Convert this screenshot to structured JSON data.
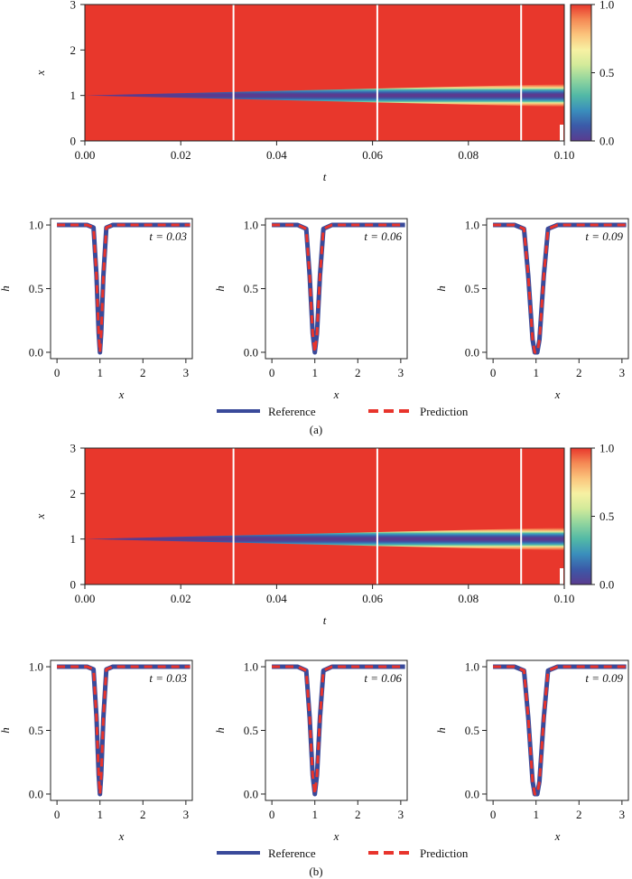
{
  "colors": {
    "reference": "#3a4a9a",
    "prediction": "#e8342c",
    "colormap": [
      "#5a3b8f",
      "#3b5aa8",
      "#3a8ebc",
      "#52b9a6",
      "#8fd49e",
      "#d2ea9a",
      "#f7f1a3",
      "#fbc57d",
      "#f58a55",
      "#e8372c"
    ],
    "time_marker": "#ffffff"
  },
  "chart_data": [
    {
      "panel": "a",
      "type": "heatmap",
      "xlabel": "t",
      "ylabel": "x",
      "xlim": [
        0.0,
        0.1
      ],
      "ylim": [
        0,
        3
      ],
      "xticks": [
        "0.00",
        "0.02",
        "0.04",
        "0.06",
        "0.08",
        "0.10"
      ],
      "xtick_values": [
        0.0,
        0.02,
        0.04,
        0.06,
        0.08,
        0.1
      ],
      "yticks": [
        "0",
        "1",
        "2",
        "3"
      ],
      "ytick_values": [
        0,
        1,
        2,
        3
      ],
      "colorbar": {
        "range": [
          0.0,
          1.0
        ],
        "ticks": [
          "0.0",
          "0.5",
          "1.0"
        ],
        "tick_values": [
          0.0,
          0.5,
          1.0
        ]
      },
      "time_markers": [
        0.031,
        0.061,
        0.091
      ],
      "channel_center": 1.0,
      "channel_half_width_at_end": 0.25
    },
    {
      "panel": "a",
      "type": "line",
      "subplots": [
        {
          "annotation": "t = 0.03",
          "t": 0.03,
          "x": [
            0,
            0.7,
            0.85,
            0.92,
            0.97,
            1.0,
            1.03,
            1.08,
            1.15,
            1.3,
            3.1
          ],
          "series": [
            {
              "name": "Reference",
              "values": [
                1,
                1,
                0.98,
                0.6,
                0.15,
                0,
                0.15,
                0.6,
                0.98,
                1,
                1
              ]
            },
            {
              "name": "Prediction",
              "values": [
                1,
                1,
                0.98,
                0.6,
                0.15,
                0,
                0.15,
                0.6,
                0.98,
                1,
                1
              ]
            }
          ]
        },
        {
          "annotation": "t = 0.06",
          "t": 0.06,
          "x": [
            0,
            0.6,
            0.8,
            0.88,
            0.95,
            1.0,
            1.05,
            1.12,
            1.2,
            1.4,
            3.1
          ],
          "series": [
            {
              "name": "Reference",
              "values": [
                1,
                1,
                0.97,
                0.6,
                0.15,
                0,
                0.15,
                0.6,
                0.97,
                1,
                1
              ]
            },
            {
              "name": "Prediction",
              "values": [
                1,
                1,
                0.97,
                0.6,
                0.15,
                0,
                0.15,
                0.6,
                0.97,
                1,
                1
              ]
            }
          ]
        },
        {
          "annotation": "t = 0.09",
          "t": 0.09,
          "x": [
            0,
            0.5,
            0.72,
            0.82,
            0.92,
            0.97,
            1.03,
            1.08,
            1.18,
            1.28,
            1.5,
            3.1
          ],
          "series": [
            {
              "name": "Reference",
              "values": [
                1,
                1,
                0.97,
                0.6,
                0.1,
                0,
                0,
                0.1,
                0.6,
                0.97,
                1,
                1
              ]
            },
            {
              "name": "Prediction",
              "values": [
                1,
                1,
                0.97,
                0.6,
                0.1,
                0,
                0,
                0.1,
                0.6,
                0.97,
                1,
                1
              ]
            }
          ]
        }
      ],
      "xlabel": "x",
      "ylabel": "h",
      "xlim": [
        -0.15,
        3.15
      ],
      "ylim": [
        -0.05,
        1.05
      ],
      "xticks": [
        "0",
        "1",
        "2",
        "3"
      ],
      "xtick_values": [
        0,
        1,
        2,
        3
      ],
      "yticks": [
        "0.0",
        "0.5",
        "1.0"
      ],
      "ytick_values": [
        0.0,
        0.5,
        1.0
      ],
      "legend": [
        "Reference",
        "Prediction"
      ],
      "caption": "(a)"
    },
    {
      "panel": "b",
      "type": "heatmap",
      "xlabel": "t",
      "ylabel": "x",
      "xlim": [
        0.0,
        0.1
      ],
      "ylim": [
        0,
        3
      ],
      "xticks": [
        "0.00",
        "0.02",
        "0.04",
        "0.06",
        "0.08",
        "0.10"
      ],
      "xtick_values": [
        0.0,
        0.02,
        0.04,
        0.06,
        0.08,
        0.1
      ],
      "yticks": [
        "0",
        "1",
        "2",
        "3"
      ],
      "ytick_values": [
        0,
        1,
        2,
        3
      ],
      "colorbar": {
        "range": [
          0.0,
          1.0
        ],
        "ticks": [
          "0.0",
          "0.5",
          "1.0"
        ],
        "tick_values": [
          0.0,
          0.5,
          1.0
        ]
      },
      "time_markers": [
        0.031,
        0.061,
        0.091
      ],
      "channel_center": 1.0,
      "channel_half_width_at_end": 0.25
    },
    {
      "panel": "b",
      "type": "line",
      "subplots": [
        {
          "annotation": "t = 0.03",
          "t": 0.03,
          "x": [
            0,
            0.7,
            0.85,
            0.92,
            0.97,
            1.0,
            1.03,
            1.08,
            1.15,
            1.3,
            3.1
          ],
          "series": [
            {
              "name": "Reference",
              "values": [
                1,
                1,
                0.98,
                0.6,
                0.15,
                0,
                0.15,
                0.6,
                0.98,
                1,
                1
              ]
            },
            {
              "name": "Prediction",
              "values": [
                1,
                1,
                0.98,
                0.6,
                0.15,
                0,
                0.15,
                0.6,
                0.98,
                1,
                1
              ]
            }
          ]
        },
        {
          "annotation": "t = 0.06",
          "t": 0.06,
          "x": [
            0,
            0.6,
            0.8,
            0.88,
            0.95,
            1.0,
            1.05,
            1.12,
            1.2,
            1.4,
            3.1
          ],
          "series": [
            {
              "name": "Reference",
              "values": [
                1,
                1,
                0.97,
                0.6,
                0.15,
                0,
                0.15,
                0.6,
                0.97,
                1,
                1
              ]
            },
            {
              "name": "Prediction",
              "values": [
                1,
                1,
                0.97,
                0.6,
                0.15,
                0,
                0.15,
                0.6,
                0.97,
                1,
                1
              ]
            }
          ]
        },
        {
          "annotation": "t = 0.09",
          "t": 0.09,
          "x": [
            0,
            0.5,
            0.72,
            0.82,
            0.92,
            0.97,
            1.03,
            1.08,
            1.18,
            1.28,
            1.5,
            3.1
          ],
          "series": [
            {
              "name": "Reference",
              "values": [
                1,
                1,
                0.97,
                0.6,
                0.1,
                0,
                0,
                0.1,
                0.6,
                0.97,
                1,
                1
              ]
            },
            {
              "name": "Prediction",
              "values": [
                1,
                1,
                0.97,
                0.6,
                0.1,
                0,
                0,
                0.1,
                0.6,
                0.97,
                1,
                1
              ]
            }
          ]
        }
      ],
      "xlabel": "x",
      "ylabel": "h",
      "xlim": [
        -0.15,
        3.15
      ],
      "ylim": [
        -0.05,
        1.05
      ],
      "xticks": [
        "0",
        "1",
        "2",
        "3"
      ],
      "xtick_values": [
        0,
        1,
        2,
        3
      ],
      "yticks": [
        "0.0",
        "0.5",
        "1.0"
      ],
      "ytick_values": [
        0.0,
        0.5,
        1.0
      ],
      "legend": [
        "Reference",
        "Prediction"
      ],
      "caption": "(b)"
    }
  ]
}
